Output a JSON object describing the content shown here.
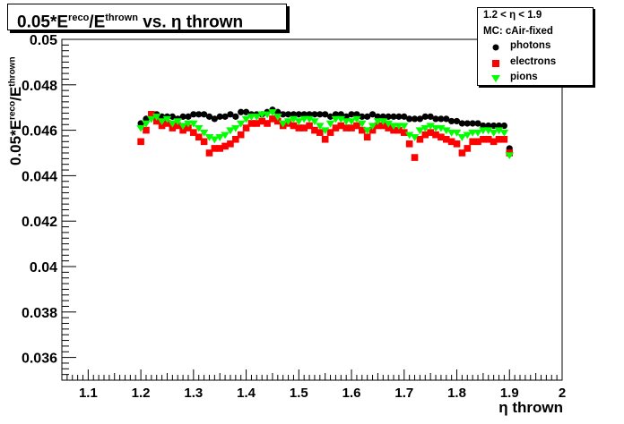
{
  "title": {
    "prefix": "0.05*E",
    "reco_sup": "reco",
    "slash": "/E",
    "thrown_sup": "thrown",
    "suffix": " vs. η thrown"
  },
  "legend": {
    "header1": "1.2 < η < 1.9",
    "header2": "MC: cAir-fixed",
    "entries": [
      {
        "label": "photons",
        "color": "#000000",
        "marker": "circle"
      },
      {
        "label": "electrons",
        "color": "#ff0000",
        "marker": "square"
      },
      {
        "label": "pions",
        "color": "#00ff00",
        "marker": "triangle-down"
      }
    ]
  },
  "axes": {
    "xlabel": "η thrown",
    "ylabel_prefix": "0.05*E",
    "ylabel_sup": "reco",
    "ylabel_mid": "/E",
    "ylabel_sup2": "thrown",
    "xlim": [
      1.05,
      2.0
    ],
    "ylim": [
      0.035,
      0.05
    ],
    "xticks": [
      "1.1",
      "1.2",
      "1.3",
      "1.4",
      "1.5",
      "1.6",
      "1.7",
      "1.8",
      "1.9",
      "2"
    ],
    "yticks": [
      "0.036",
      "0.038",
      "0.04",
      "0.042",
      "0.044",
      "0.046",
      "0.048",
      "0.05"
    ]
  },
  "chart_data": {
    "type": "scatter",
    "title": "0.05*E^reco/E^thrown vs. η thrown",
    "xlabel": "η thrown",
    "ylabel": "0.05*E^reco/E^thrown",
    "xlim": [
      1.05,
      2.0
    ],
    "ylim": [
      0.035,
      0.05
    ],
    "grid": false,
    "legend_position": "top-right",
    "series": [
      {
        "name": "photons",
        "color": "#000000",
        "marker": "circle",
        "x": [
          1.2,
          1.21,
          1.22,
          1.23,
          1.24,
          1.25,
          1.26,
          1.27,
          1.28,
          1.29,
          1.3,
          1.31,
          1.32,
          1.33,
          1.34,
          1.35,
          1.36,
          1.37,
          1.38,
          1.39,
          1.4,
          1.41,
          1.42,
          1.43,
          1.44,
          1.45,
          1.46,
          1.47,
          1.48,
          1.49,
          1.5,
          1.51,
          1.52,
          1.53,
          1.54,
          1.55,
          1.56,
          1.57,
          1.58,
          1.59,
          1.6,
          1.61,
          1.62,
          1.63,
          1.64,
          1.65,
          1.66,
          1.67,
          1.68,
          1.69,
          1.7,
          1.71,
          1.72,
          1.73,
          1.74,
          1.75,
          1.76,
          1.77,
          1.78,
          1.79,
          1.8,
          1.81,
          1.82,
          1.83,
          1.84,
          1.85,
          1.86,
          1.87,
          1.88,
          1.89,
          1.9
        ],
        "y": [
          0.0463,
          0.0465,
          0.0466,
          0.0467,
          0.0466,
          0.0466,
          0.0466,
          0.0465,
          0.0466,
          0.0466,
          0.0467,
          0.0467,
          0.0467,
          0.0466,
          0.0465,
          0.0466,
          0.0466,
          0.0467,
          0.0466,
          0.0468,
          0.0468,
          0.0467,
          0.0467,
          0.0467,
          0.0468,
          0.0469,
          0.0468,
          0.0467,
          0.0467,
          0.0467,
          0.0467,
          0.0467,
          0.0467,
          0.0467,
          0.0467,
          0.0467,
          0.0466,
          0.0467,
          0.0467,
          0.0466,
          0.0467,
          0.0467,
          0.0466,
          0.0466,
          0.0467,
          0.0466,
          0.0466,
          0.0466,
          0.0466,
          0.0466,
          0.0466,
          0.0465,
          0.0465,
          0.0465,
          0.0466,
          0.0466,
          0.0465,
          0.0465,
          0.0465,
          0.0464,
          0.0464,
          0.0463,
          0.0463,
          0.0463,
          0.0463,
          0.0462,
          0.0462,
          0.0462,
          0.0462,
          0.0462,
          0.0452
        ]
      },
      {
        "name": "electrons",
        "color": "#ff0000",
        "marker": "square",
        "x": [
          1.2,
          1.21,
          1.22,
          1.23,
          1.24,
          1.25,
          1.26,
          1.27,
          1.28,
          1.29,
          1.3,
          1.31,
          1.32,
          1.33,
          1.34,
          1.35,
          1.36,
          1.37,
          1.38,
          1.39,
          1.4,
          1.41,
          1.42,
          1.43,
          1.44,
          1.45,
          1.46,
          1.47,
          1.48,
          1.49,
          1.5,
          1.51,
          1.52,
          1.53,
          1.54,
          1.55,
          1.56,
          1.57,
          1.58,
          1.59,
          1.6,
          1.61,
          1.62,
          1.63,
          1.64,
          1.65,
          1.66,
          1.67,
          1.68,
          1.69,
          1.7,
          1.71,
          1.72,
          1.73,
          1.74,
          1.75,
          1.76,
          1.77,
          1.78,
          1.79,
          1.8,
          1.81,
          1.82,
          1.83,
          1.84,
          1.85,
          1.86,
          1.87,
          1.88,
          1.89,
          1.9
        ],
        "y": [
          0.0455,
          0.046,
          0.0467,
          0.0464,
          0.0462,
          0.0463,
          0.0461,
          0.0462,
          0.046,
          0.0461,
          0.0459,
          0.0457,
          0.0455,
          0.045,
          0.0452,
          0.0452,
          0.0453,
          0.0454,
          0.0456,
          0.0458,
          0.0461,
          0.0463,
          0.0463,
          0.0464,
          0.0463,
          0.0465,
          0.0464,
          0.0462,
          0.0463,
          0.0462,
          0.0461,
          0.0461,
          0.0462,
          0.046,
          0.0459,
          0.0456,
          0.0459,
          0.0461,
          0.0462,
          0.0461,
          0.0461,
          0.0462,
          0.046,
          0.0457,
          0.046,
          0.0462,
          0.0462,
          0.0461,
          0.046,
          0.046,
          0.0459,
          0.0454,
          0.0448,
          0.0456,
          0.0458,
          0.0459,
          0.0458,
          0.0457,
          0.0456,
          0.0455,
          0.0454,
          0.045,
          0.0452,
          0.0455,
          0.0455,
          0.0456,
          0.0456,
          0.0455,
          0.0456,
          0.0456,
          0.045
        ]
      },
      {
        "name": "pions",
        "color": "#00ff00",
        "marker": "triangle-down",
        "x": [
          1.2,
          1.21,
          1.22,
          1.23,
          1.24,
          1.25,
          1.26,
          1.27,
          1.28,
          1.29,
          1.3,
          1.31,
          1.32,
          1.33,
          1.34,
          1.35,
          1.36,
          1.37,
          1.38,
          1.39,
          1.4,
          1.41,
          1.42,
          1.43,
          1.44,
          1.45,
          1.46,
          1.47,
          1.48,
          1.49,
          1.5,
          1.51,
          1.52,
          1.53,
          1.54,
          1.55,
          1.56,
          1.57,
          1.58,
          1.59,
          1.6,
          1.61,
          1.62,
          1.63,
          1.64,
          1.65,
          1.66,
          1.67,
          1.68,
          1.69,
          1.7,
          1.71,
          1.72,
          1.73,
          1.74,
          1.75,
          1.76,
          1.77,
          1.78,
          1.79,
          1.8,
          1.81,
          1.82,
          1.83,
          1.84,
          1.85,
          1.86,
          1.87,
          1.88,
          1.89,
          1.9
        ],
        "y": [
          0.0461,
          0.0463,
          0.0465,
          0.0466,
          0.0464,
          0.0465,
          0.0463,
          0.0464,
          0.0462,
          0.0463,
          0.0463,
          0.0461,
          0.0459,
          0.0457,
          0.0456,
          0.0457,
          0.0458,
          0.046,
          0.0461,
          0.0463,
          0.0465,
          0.0466,
          0.0466,
          0.0467,
          0.0467,
          0.0468,
          0.0466,
          0.0463,
          0.0464,
          0.0465,
          0.0464,
          0.0465,
          0.0465,
          0.0464,
          0.0462,
          0.046,
          0.0463,
          0.0465,
          0.0465,
          0.0464,
          0.0464,
          0.0465,
          0.0463,
          0.046,
          0.0462,
          0.0464,
          0.0464,
          0.0463,
          0.0462,
          0.0462,
          0.0462,
          0.0458,
          0.0457,
          0.046,
          0.0461,
          0.0462,
          0.0461,
          0.0461,
          0.046,
          0.0459,
          0.0459,
          0.0457,
          0.0458,
          0.0459,
          0.0459,
          0.046,
          0.046,
          0.0459,
          0.046,
          0.0459,
          0.0449
        ]
      }
    ]
  }
}
